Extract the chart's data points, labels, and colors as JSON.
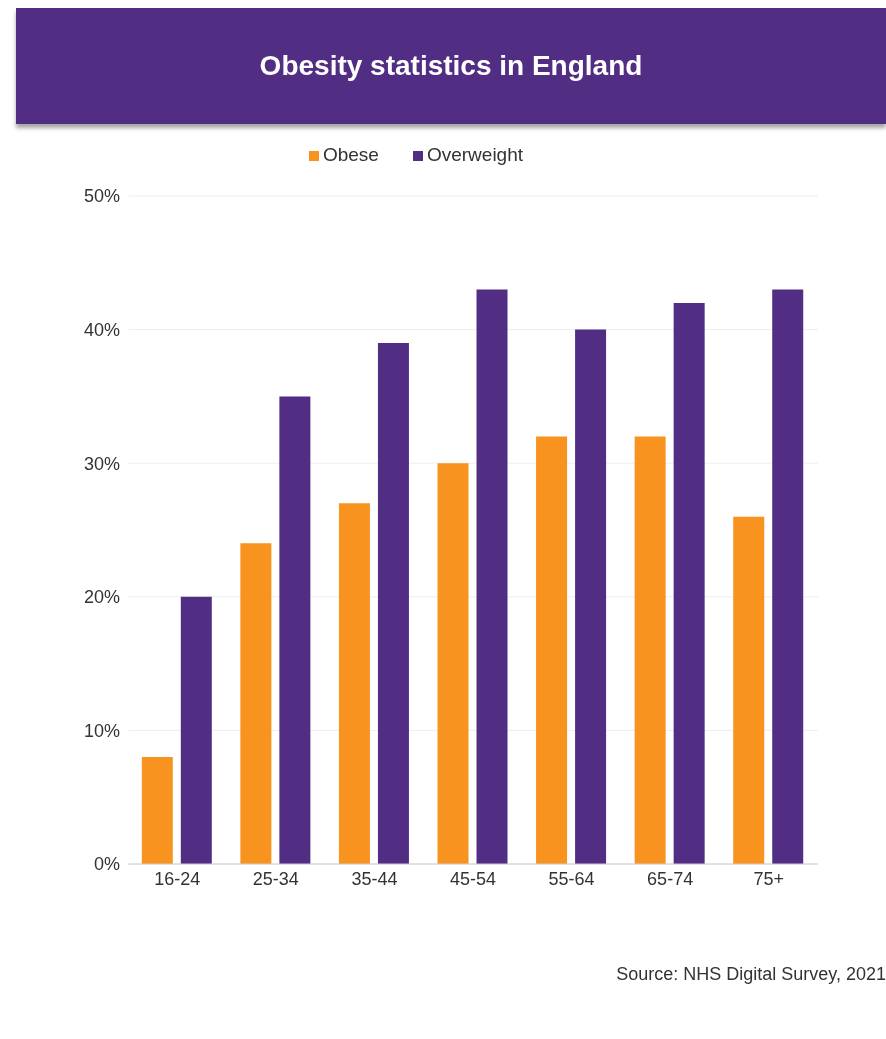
{
  "chart_data": {
    "type": "bar",
    "title": "Obesity statistics in England",
    "categories": [
      "16-24",
      "25-34",
      "35-44",
      "45-54",
      "55-64",
      "65-74",
      "75+"
    ],
    "series": [
      {
        "name": "Obese",
        "color": "#f7931e",
        "values": [
          8,
          24,
          27,
          30,
          32,
          32,
          26
        ]
      },
      {
        "name": "Overweight",
        "color": "#522d84",
        "values": [
          20,
          35,
          39,
          43,
          40,
          42,
          43
        ]
      }
    ],
    "ylim": [
      0,
      50
    ],
    "yticks": [
      {
        "value": 0,
        "label": "0%"
      },
      {
        "value": 10,
        "label": "10%"
      },
      {
        "value": 20,
        "label": "20%"
      },
      {
        "value": 30,
        "label": "30%"
      },
      {
        "value": 40,
        "label": "40%"
      },
      {
        "value": 50,
        "label": "50%"
      }
    ],
    "grid": "y",
    "legend": "top",
    "annotations": [
      "Source: NHS Digital Survey, 2021"
    ]
  }
}
